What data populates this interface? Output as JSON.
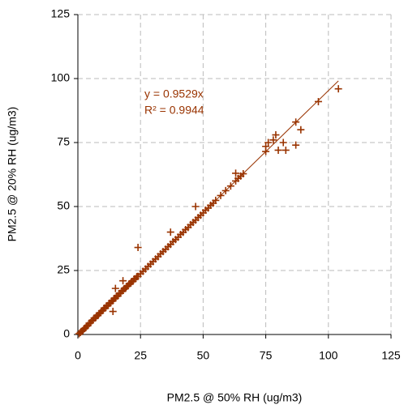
{
  "chart_data": {
    "type": "scatter",
    "xlabel": "PM2.5 @ 50% RH (ug/m3)",
    "ylabel": "PM2.5 @ 20% RH (ug/m3)",
    "annotations": [
      "y = 0.9529x",
      "R² = 0.9944"
    ],
    "color": "#993300",
    "grid": true,
    "xlim": [
      0,
      125
    ],
    "ylim": [
      0,
      125
    ],
    "xticks": [
      0,
      25,
      50,
      75,
      100,
      125
    ],
    "yticks": [
      0,
      25,
      50,
      75,
      100,
      125
    ],
    "trendline": {
      "x": [
        0,
        104
      ],
      "y": [
        0,
        99.1
      ]
    },
    "x": [
      0.5,
      1,
      1.5,
      2,
      2.5,
      3,
      3.5,
      4,
      4.5,
      5,
      5.5,
      6,
      6.5,
      7,
      7.5,
      8,
      8.5,
      9,
      9.5,
      10,
      10.5,
      11,
      11.5,
      12,
      12.5,
      13,
      13.5,
      14,
      14.5,
      15,
      15.5,
      16,
      16.5,
      17,
      17.5,
      18,
      18.5,
      19,
      19.5,
      20,
      20.5,
      21,
      21.5,
      22,
      22.5,
      23,
      23.5,
      24,
      24,
      25,
      26,
      27,
      28,
      29,
      30,
      31,
      32,
      33,
      34,
      35,
      36,
      37,
      38,
      39,
      40,
      41,
      42,
      43,
      44,
      45,
      46,
      47,
      48,
      49,
      50,
      51,
      52,
      53,
      54,
      55,
      57,
      59,
      61,
      63,
      64,
      65,
      66,
      75,
      75,
      76,
      78,
      79,
      80,
      82,
      83,
      87,
      87,
      89,
      96,
      104,
      15,
      18,
      37,
      47,
      63,
      14
    ],
    "values": [
      0.3,
      0.8,
      1.2,
      1.5,
      2.3,
      2.6,
      3.2,
      3.5,
      4.4,
      4.6,
      5.3,
      5.6,
      6.4,
      6.5,
      7.3,
      7.4,
      8.2,
      8.5,
      9.2,
      9.4,
      10.3,
      10.4,
      11.2,
      11.3,
      12.2,
      12.3,
      13.1,
      13.2,
      14.1,
      14.2,
      15,
      15.1,
      16,
      16.1,
      17,
      17.2,
      17.9,
      18,
      18.8,
      19,
      19.8,
      20,
      20.7,
      20.8,
      21.7,
      21.8,
      22.6,
      22.7,
      34,
      23.7,
      24.7,
      25.6,
      26.6,
      27.5,
      28.5,
      29.5,
      30.4,
      31.5,
      32.4,
      33.3,
      34.3,
      35.2,
      36.3,
      37.1,
      38,
      39.1,
      39.9,
      41,
      41.8,
      42.9,
      43.8,
      44.7,
      45.7,
      46.6,
      47.5,
      48.6,
      49.4,
      50.5,
      51.3,
      52.4,
      54.3,
      56.2,
      58,
      60,
      61,
      61.9,
      62.8,
      71.5,
      73.5,
      75,
      76,
      78,
      72,
      75,
      72,
      74,
      83,
      80,
      91,
      96,
      18,
      21,
      40,
      50,
      63,
      9
    ]
  }
}
